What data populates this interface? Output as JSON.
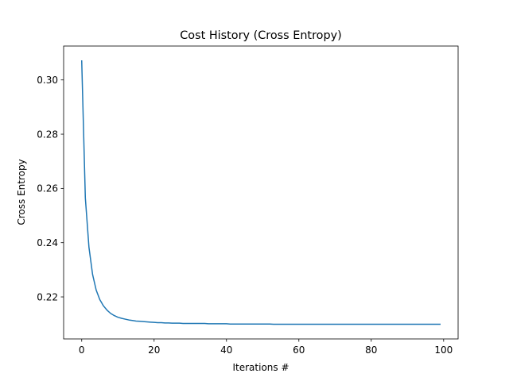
{
  "chart_data": {
    "type": "line",
    "title": "Cost History (Cross Entropy)",
    "xlabel": "Iterations #",
    "ylabel": "Cross Entropy",
    "xlim": [
      -5,
      104
    ],
    "ylim": [
      0.2045,
      0.3125
    ],
    "xticks": [
      0,
      20,
      40,
      60,
      80,
      100
    ],
    "yticks": [
      0.22,
      0.24,
      0.26,
      0.28,
      0.3
    ],
    "xtick_labels": [
      "0",
      "20",
      "40",
      "60",
      "80",
      "100"
    ],
    "ytick_labels": [
      "0.22",
      "0.24",
      "0.26",
      "0.28",
      "0.30"
    ],
    "grid": false,
    "series": [
      {
        "color": "#1f77b4",
        "x": [
          0,
          1,
          2,
          3,
          4,
          5,
          6,
          7,
          8,
          9,
          10,
          11,
          12,
          13,
          14,
          15,
          16,
          17,
          18,
          19,
          20,
          21,
          22,
          23,
          24,
          25,
          26,
          27,
          28,
          29,
          30,
          31,
          32,
          33,
          34,
          35,
          36,
          37,
          38,
          39,
          40,
          41,
          42,
          43,
          44,
          45,
          46,
          47,
          48,
          49,
          50,
          51,
          52,
          53,
          54,
          55,
          56,
          57,
          58,
          59,
          60,
          61,
          62,
          63,
          64,
          65,
          66,
          67,
          68,
          69,
          70,
          71,
          72,
          73,
          74,
          75,
          76,
          77,
          78,
          79,
          80,
          81,
          82,
          83,
          84,
          85,
          86,
          87,
          88,
          89,
          90,
          91,
          92,
          93,
          94,
          95,
          96,
          97,
          98,
          99
        ],
        "y": [
          0.307,
          0.2565,
          0.2383,
          0.2283,
          0.2225,
          0.219,
          0.2167,
          0.2151,
          0.2139,
          0.2131,
          0.2125,
          0.2121,
          0.2118,
          0.2115,
          0.2113,
          0.2111,
          0.211,
          0.2109,
          0.2108,
          0.2107,
          0.2106,
          0.2105,
          0.2105,
          0.2104,
          0.2104,
          0.2103,
          0.2103,
          0.2103,
          0.2102,
          0.2102,
          0.2102,
          0.2102,
          0.2102,
          0.2102,
          0.2102,
          0.2101,
          0.2101,
          0.2101,
          0.2101,
          0.2101,
          0.2101,
          0.21,
          0.21,
          0.21,
          0.21,
          0.21,
          0.21,
          0.21,
          0.21,
          0.21,
          0.21,
          0.21,
          0.21,
          0.2099,
          0.2099,
          0.2099,
          0.2099,
          0.2099,
          0.2099,
          0.2099,
          0.2099,
          0.2099,
          0.2099,
          0.2099,
          0.2099,
          0.2099,
          0.2099,
          0.2099,
          0.2099,
          0.2099,
          0.2099,
          0.2099,
          0.2099,
          0.2099,
          0.2099,
          0.2099,
          0.2099,
          0.2099,
          0.2099,
          0.2099,
          0.2099,
          0.2099,
          0.2099,
          0.2099,
          0.2099,
          0.2099,
          0.2099,
          0.2099,
          0.2099,
          0.2099,
          0.2099,
          0.2099,
          0.2099,
          0.2099,
          0.2099,
          0.2099,
          0.2099,
          0.2099,
          0.2099,
          0.2099
        ]
      }
    ]
  }
}
